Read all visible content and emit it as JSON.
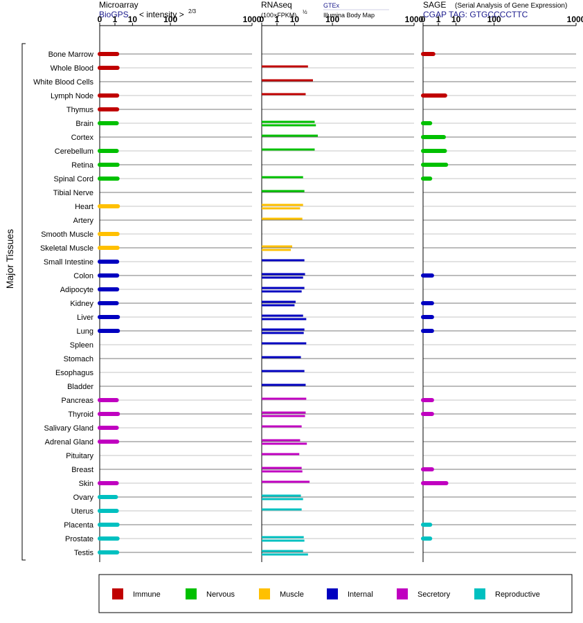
{
  "panels": {
    "microarray": {
      "title": "Microarray",
      "source": "BioGPS",
      "unit": "< intensity >",
      "unit_exp": "2/3"
    },
    "rnaseq": {
      "title": "RNAseq",
      "unit": "(100×FPKM)",
      "unit_exp": "½",
      "source_1": "GTEx",
      "source_2": "Illumina Body Map"
    },
    "sage": {
      "title": "SAGE",
      "subtitle": "(Serial Analysis of Gene Expression)",
      "tag": "CGAP TAG: GTGCCCCTTC"
    }
  },
  "y_axis_label": "Major Tissues",
  "colors": {
    "Immune": "#c00000",
    "Nervous": "#00c000",
    "Muscle": "#ffc000",
    "Internal": "#0000c0",
    "Secretory": "#c000c0",
    "Reproductive": "#00c0c0"
  },
  "legend": [
    {
      "name": "Immune",
      "color": "#c00000"
    },
    {
      "name": "Nervous",
      "color": "#00c000"
    },
    {
      "name": "Muscle",
      "color": "#ffc000"
    },
    {
      "name": "Internal",
      "color": "#0000c0"
    },
    {
      "name": "Secretory",
      "color": "#c000c0"
    },
    {
      "name": "Reproductive",
      "color": "#00c0c0"
    }
  ],
  "chart_data": {
    "type": "bar",
    "orientation": "horizontal",
    "x_scale": "power",
    "x_ticks": [
      "0",
      "1",
      "10",
      "100",
      "1000"
    ],
    "x_tick_values": [
      0,
      1,
      10,
      100,
      1000
    ],
    "xlim": [
      0,
      1000
    ],
    "grid": true,
    "legend_position": "bottom",
    "tissues": [
      {
        "name": "Bone Marrow",
        "group": "Immune",
        "microarray": 1.5,
        "rnaseq": [],
        "sage": 0.3
      },
      {
        "name": "Whole Blood",
        "group": "Immune",
        "microarray": 1.6,
        "rnaseq": [
          28
        ],
        "sage": null
      },
      {
        "name": "White Blood Cells",
        "group": "Immune",
        "microarray": null,
        "rnaseq": [
          38
        ],
        "sage": null
      },
      {
        "name": "Lymph Node",
        "group": "Immune",
        "microarray": 1.5,
        "rnaseq": [
          24
        ],
        "sage": 3
      },
      {
        "name": "Thymus",
        "group": "Immune",
        "microarray": 1.5,
        "rnaseq": [],
        "sage": null
      },
      {
        "name": "Brain",
        "group": "Nervous",
        "microarray": 1.4,
        "rnaseq": [
          42,
          45
        ],
        "sage": 0.1
      },
      {
        "name": "Cortex",
        "group": "Nervous",
        "microarray": null,
        "rnaseq": [
          50
        ],
        "sage": 2.5
      },
      {
        "name": "Cerebellum",
        "group": "Nervous",
        "microarray": 1.4,
        "rnaseq": [
          42
        ],
        "sage": 2.9
      },
      {
        "name": "Retina",
        "group": "Nervous",
        "microarray": 1.6,
        "rnaseq": [],
        "sage": 3.4
      },
      {
        "name": "Spinal Cord",
        "group": "Nervous",
        "microarray": 1.6,
        "rnaseq": [
          20
        ],
        "sage": 0.1
      },
      {
        "name": "Tibial Nerve",
        "group": "Nervous",
        "microarray": null,
        "rnaseq": [
          22
        ],
        "sage": null
      },
      {
        "name": "Heart",
        "group": "Muscle",
        "microarray": 1.7,
        "rnaseq": [
          20,
          16
        ],
        "sage": null
      },
      {
        "name": "Artery",
        "group": "Muscle",
        "microarray": null,
        "rnaseq": [
          19
        ],
        "sage": null
      },
      {
        "name": "Smooth Muscle",
        "group": "Muscle",
        "microarray": 1.6,
        "rnaseq": [],
        "sage": null
      },
      {
        "name": "Skeletal Muscle",
        "group": "Muscle",
        "microarray": 1.6,
        "rnaseq": [
          8,
          7
        ],
        "sage": null
      },
      {
        "name": "Small Intestine",
        "group": "Internal",
        "microarray": 1.5,
        "rnaseq": [
          22
        ],
        "sage": null
      },
      {
        "name": "Colon",
        "group": "Internal",
        "microarray": 1.5,
        "rnaseq": [
          23,
          20
        ],
        "sage": 0.2
      },
      {
        "name": "Adipocyte",
        "group": "Internal",
        "microarray": 1.5,
        "rnaseq": [
          22,
          18
        ],
        "sage": null
      },
      {
        "name": "Kidney",
        "group": "Internal",
        "microarray": 1.4,
        "rnaseq": [
          11,
          10
        ],
        "sage": 0.2
      },
      {
        "name": "Liver",
        "group": "Internal",
        "microarray": 1.7,
        "rnaseq": [
          20,
          25
        ],
        "sage": 0.2
      },
      {
        "name": "Lung",
        "group": "Internal",
        "microarray": 1.7,
        "rnaseq": [
          22,
          21
        ],
        "sage": 0.2
      },
      {
        "name": "Spleen",
        "group": "Internal",
        "microarray": null,
        "rnaseq": [
          25
        ],
        "sage": null
      },
      {
        "name": "Stomach",
        "group": "Internal",
        "microarray": null,
        "rnaseq": [
          17
        ],
        "sage": null
      },
      {
        "name": "Esophagus",
        "group": "Internal",
        "microarray": null,
        "rnaseq": [
          22
        ],
        "sage": null
      },
      {
        "name": "Bladder",
        "group": "Internal",
        "microarray": null,
        "rnaseq": [
          24
        ],
        "sage": null
      },
      {
        "name": "Pancreas",
        "group": "Secretory",
        "microarray": 1.4,
        "rnaseq": [
          25
        ],
        "sage": 0.2
      },
      {
        "name": "Thyroid",
        "group": "Secretory",
        "microarray": 1.7,
        "rnaseq": [
          24,
          23
        ],
        "sage": 0.2
      },
      {
        "name": "Salivary Gland",
        "group": "Secretory",
        "microarray": 1.4,
        "rnaseq": [
          18
        ],
        "sage": null
      },
      {
        "name": "Adrenal Gland",
        "group": "Secretory",
        "microarray": 1.5,
        "rnaseq": [
          16,
          26
        ],
        "sage": null
      },
      {
        "name": "Pituitary",
        "group": "Secretory",
        "microarray": null,
        "rnaseq": [
          15
        ],
        "sage": null
      },
      {
        "name": "Breast",
        "group": "Secretory",
        "microarray": null,
        "rnaseq": [
          18,
          19
        ],
        "sage": 0.2
      },
      {
        "name": "Skin",
        "group": "Secretory",
        "microarray": 1.4,
        "rnaseq": [
          31
        ],
        "sage": 3.5
      },
      {
        "name": "Ovary",
        "group": "Reproductive",
        "microarray": 1.2,
        "rnaseq": [
          17,
          20
        ],
        "sage": null
      },
      {
        "name": "Uterus",
        "group": "Reproductive",
        "microarray": 1.4,
        "rnaseq": [
          18
        ],
        "sage": null
      },
      {
        "name": "Placenta",
        "group": "Reproductive",
        "microarray": 1.6,
        "rnaseq": [],
        "sage": 0.1
      },
      {
        "name": "Prostate",
        "group": "Reproductive",
        "microarray": 1.6,
        "rnaseq": [
          21,
          22
        ],
        "sage": 0.1
      },
      {
        "name": "Testis",
        "group": "Reproductive",
        "microarray": 1.5,
        "rnaseq": [
          20,
          28
        ],
        "sage": null
      }
    ]
  }
}
